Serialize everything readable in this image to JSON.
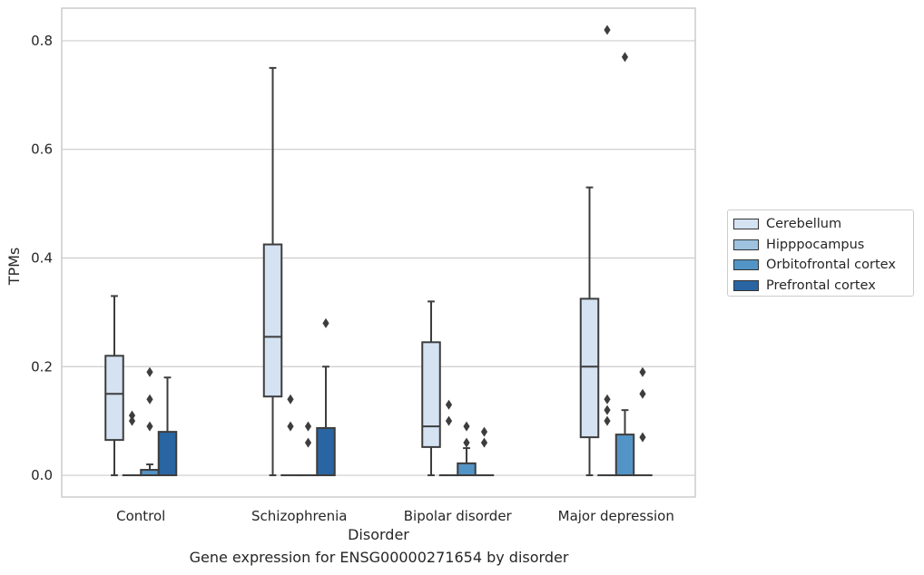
{
  "caption": "Gene expression for ENSG00000271654 by disorder",
  "chart_data": {
    "type": "box",
    "title": "",
    "xlabel": "Disorder",
    "ylabel": "TPMs",
    "ylim": [
      -0.04,
      0.86
    ],
    "yticks": [
      0.0,
      0.2,
      0.4,
      0.6,
      0.8
    ],
    "ytick_labels": [
      "0.0",
      "0.2",
      "0.4",
      "0.6",
      "0.8"
    ],
    "grid": "horizontal",
    "legend_position": "center-right",
    "categories": [
      "Control",
      "Schizophrenia",
      "Bipolar disorder",
      "Major depression"
    ],
    "series": [
      {
        "name": "Cerebellum",
        "color": "#d4e2f2",
        "boxes": [
          {
            "whislo": 0.0,
            "q1": 0.065,
            "med": 0.15,
            "q3": 0.22,
            "whishi": 0.33,
            "fliers": []
          },
          {
            "whislo": 0.0,
            "q1": 0.145,
            "med": 0.255,
            "q3": 0.425,
            "whishi": 0.75,
            "fliers": []
          },
          {
            "whislo": 0.0,
            "q1": 0.052,
            "med": 0.09,
            "q3": 0.245,
            "whishi": 0.32,
            "fliers": []
          },
          {
            "whislo": 0.0,
            "q1": 0.07,
            "med": 0.2,
            "q3": 0.325,
            "whishi": 0.53,
            "fliers": []
          }
        ]
      },
      {
        "name": "Hipppocampus",
        "color": "#9dc3e0",
        "boxes": [
          {
            "whislo": 0.0,
            "q1": 0.0,
            "med": 0.0,
            "q3": 0.0,
            "whishi": 0.0,
            "fliers": [
              0.1,
              0.11
            ]
          },
          {
            "whislo": 0.0,
            "q1": 0.0,
            "med": 0.0,
            "q3": 0.0,
            "whishi": 0.0,
            "fliers": [
              0.14,
              0.09
            ]
          },
          {
            "whislo": 0.0,
            "q1": 0.0,
            "med": 0.0,
            "q3": 0.0,
            "whishi": 0.0,
            "fliers": [
              0.13,
              0.1
            ]
          },
          {
            "whislo": 0.0,
            "q1": 0.0,
            "med": 0.0,
            "q3": 0.0,
            "whishi": 0.0,
            "fliers": [
              0.14,
              0.12,
              0.1,
              0.82
            ]
          }
        ]
      },
      {
        "name": "Orbitofrontal cortex",
        "color": "#5394c6",
        "boxes": [
          {
            "whislo": 0.0,
            "q1": 0.0,
            "med": 0.0,
            "q3": 0.01,
            "whishi": 0.02,
            "fliers": [
              0.19,
              0.14,
              0.09
            ]
          },
          {
            "whislo": 0.0,
            "q1": 0.0,
            "med": 0.0,
            "q3": 0.0,
            "whishi": 0.0,
            "fliers": [
              0.09,
              0.06
            ]
          },
          {
            "whislo": 0.0,
            "q1": 0.0,
            "med": 0.0,
            "q3": 0.022,
            "whishi": 0.05,
            "fliers": [
              0.09,
              0.06
            ]
          },
          {
            "whislo": 0.0,
            "q1": 0.0,
            "med": 0.0,
            "q3": 0.075,
            "whishi": 0.12,
            "fliers": [
              0.77
            ]
          }
        ]
      },
      {
        "name": "Prefrontal cortex",
        "color": "#2865a2",
        "boxes": [
          {
            "whislo": 0.0,
            "q1": 0.0,
            "med": 0.0,
            "q3": 0.08,
            "whishi": 0.18,
            "fliers": []
          },
          {
            "whislo": 0.0,
            "q1": 0.0,
            "med": 0.0,
            "q3": 0.087,
            "whishi": 0.2,
            "fliers": [
              0.28
            ]
          },
          {
            "whislo": 0.0,
            "q1": 0.0,
            "med": 0.0,
            "q3": 0.0,
            "whishi": 0.0,
            "fliers": [
              0.08,
              0.06
            ]
          },
          {
            "whislo": 0.0,
            "q1": 0.0,
            "med": 0.0,
            "q3": 0.0,
            "whishi": 0.0,
            "fliers": [
              0.19,
              0.15,
              0.07
            ]
          }
        ]
      }
    ]
  }
}
